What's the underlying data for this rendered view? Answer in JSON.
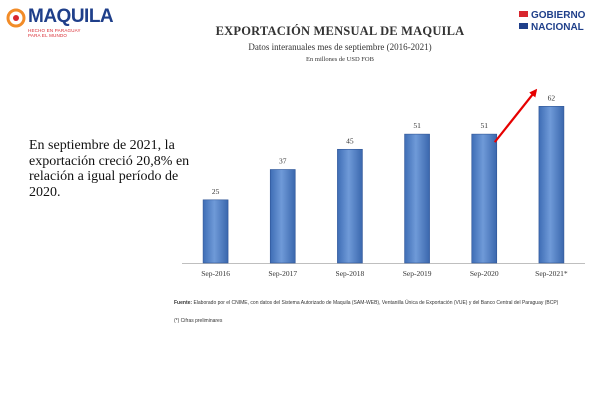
{
  "header": {
    "brand_left": "MAQUILA",
    "brand_left_tag1": "HECHO EN PARAGUAY",
    "brand_left_tag2": "PARA EL MUNDO",
    "brand_right_line1": "GOBIERNO",
    "brand_right_line2": "NACIONAL"
  },
  "statement": "En septiembre de 2021, la exportación creció 20,8% en relación a igual período de 2020.",
  "footer": {
    "source_label": "Fuente:",
    "source_text": "Elaborado por el CNIME, con datos del Sistema Autorizado de Maquila (SAM-WEB), Ventanilla Única de Exportación (VUE) y del Banco Central del Paraguay (BCP)",
    "note": "(*) Cifras preliminares"
  },
  "colors": {
    "bar": "#4f7fc6",
    "bar_dark": "#2f5596",
    "arrow": "#e60000",
    "brand_blue": "#1f3f8a",
    "brand_red": "#d8262e"
  },
  "chart_data": {
    "type": "bar",
    "title": "EXPORTACIÓN MENSUAL DE MAQUILA",
    "subtitle": "Datos interanuales mes de septiembre (2016-2021)",
    "unit_label": "En millones de USD FOB",
    "categories": [
      "Sep-2016",
      "Sep-2017",
      "Sep-2018",
      "Sep-2019",
      "Sep-2020",
      "Sep-2021*"
    ],
    "values": [
      25,
      37,
      45,
      51,
      51,
      62
    ],
    "data_labels": [
      "25",
      "37",
      "45",
      "51",
      "51",
      "62"
    ],
    "ylim": [
      0,
      70
    ],
    "grid": false,
    "legend": "none",
    "annotation": "red arrow from Sep-2020 to Sep-2021*"
  }
}
